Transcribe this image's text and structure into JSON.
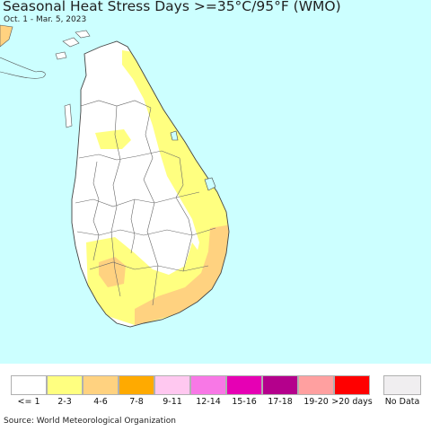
{
  "map": {
    "title": "Seasonal Heat Stress Days >=35°C/95°F (WMO)",
    "subtitle": "Oct. 1 - Mar. 5, 2023",
    "colors": {
      "ocean": "#ccffff",
      "land_base": "#ffffff",
      "border_line": "#555555"
    }
  },
  "legend": {
    "items": [
      {
        "label": "<= 1",
        "color": "#ffffff"
      },
      {
        "label": "2-3",
        "color": "#ffff80"
      },
      {
        "label": "4-6",
        "color": "#ffd280"
      },
      {
        "label": "7-8",
        "color": "#ffaa00"
      },
      {
        "label": "9-11",
        "color": "#ffc8f0"
      },
      {
        "label": "12-14",
        "color": "#f878e6"
      },
      {
        "label": "15-16",
        "color": "#e600b4"
      },
      {
        "label": "17-18",
        "color": "#b4008c"
      },
      {
        "label": "19-20",
        "color": "#ffa0a0"
      },
      {
        "label": ">20 days",
        "color": "#ff0000"
      }
    ],
    "nodata": {
      "label": "No Data",
      "color": "#f0eef0"
    }
  },
  "source": "Source: World Meteorological Organization"
}
